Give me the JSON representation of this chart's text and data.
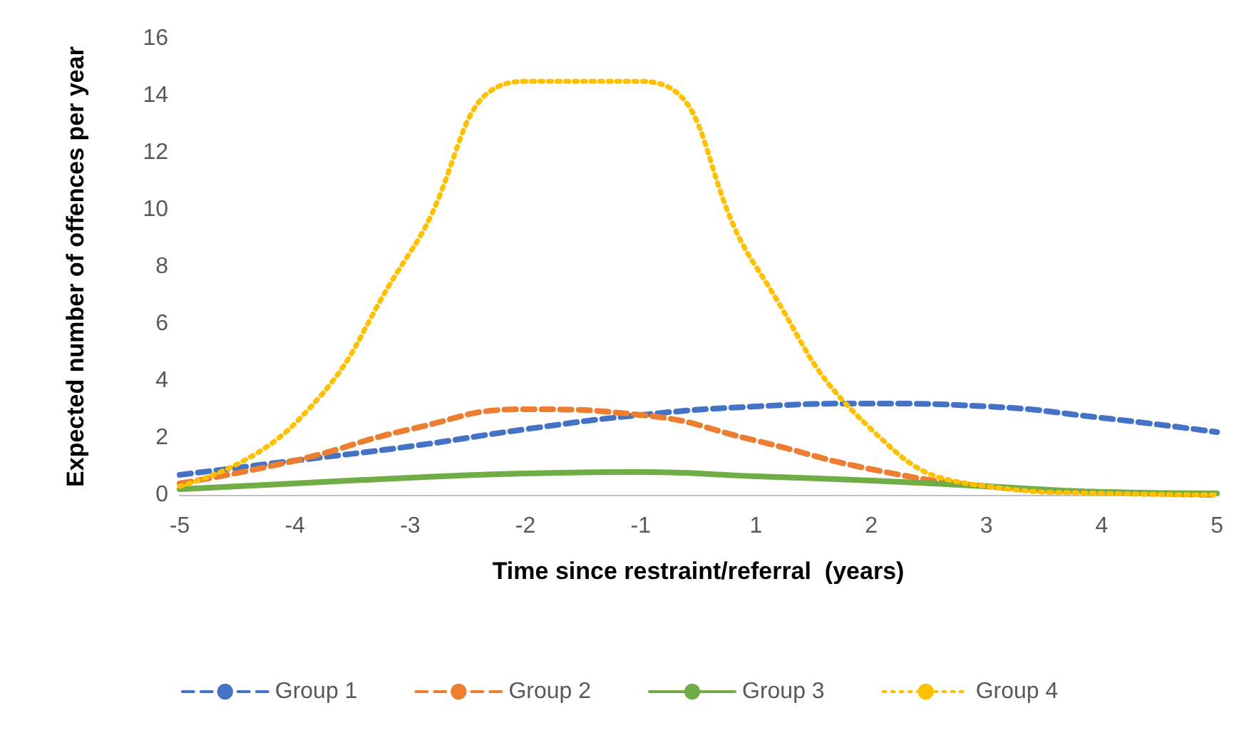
{
  "chart_data": {
    "type": "line",
    "xlabel": "Time since restraint/referral  (years)",
    "ylabel": "Expected number of offences per year",
    "categories": [
      "-5",
      "-4",
      "-3",
      "-2",
      "-1",
      "1",
      "2",
      "3",
      "4",
      "5"
    ],
    "ylim": [
      0,
      16
    ],
    "yticks": [
      0,
      2,
      4,
      6,
      8,
      10,
      12,
      14,
      16
    ],
    "grid": false,
    "legend": "bottom",
    "marker": "none",
    "series": [
      {
        "name": "Group 1",
        "color": "#4472c4",
        "line_style": "dashed",
        "values": [
          0.7,
          1.2,
          1.7,
          2.3,
          2.8,
          3.1,
          3.2,
          3.1,
          2.7,
          2.2
        ]
      },
      {
        "name": "Group 2",
        "color": "#ed7d31",
        "line_style": "dashed",
        "values": [
          0.4,
          1.2,
          2.3,
          3.0,
          2.8,
          1.9,
          0.9,
          0.3,
          0.1,
          0.0
        ]
      },
      {
        "name": "Group 3",
        "color": "#70ad47",
        "line_style": "solid",
        "values": [
          0.2,
          0.4,
          0.6,
          0.75,
          0.8,
          0.65,
          0.5,
          0.3,
          0.1,
          0.05
        ]
      },
      {
        "name": "Group 4",
        "color": "#ffc000",
        "line_style": "dotted",
        "values": [
          0.3,
          2.5,
          8.5,
          14.5,
          14.5,
          8.0,
          2.3,
          0.3,
          0.05,
          0.0
        ]
      }
    ]
  }
}
